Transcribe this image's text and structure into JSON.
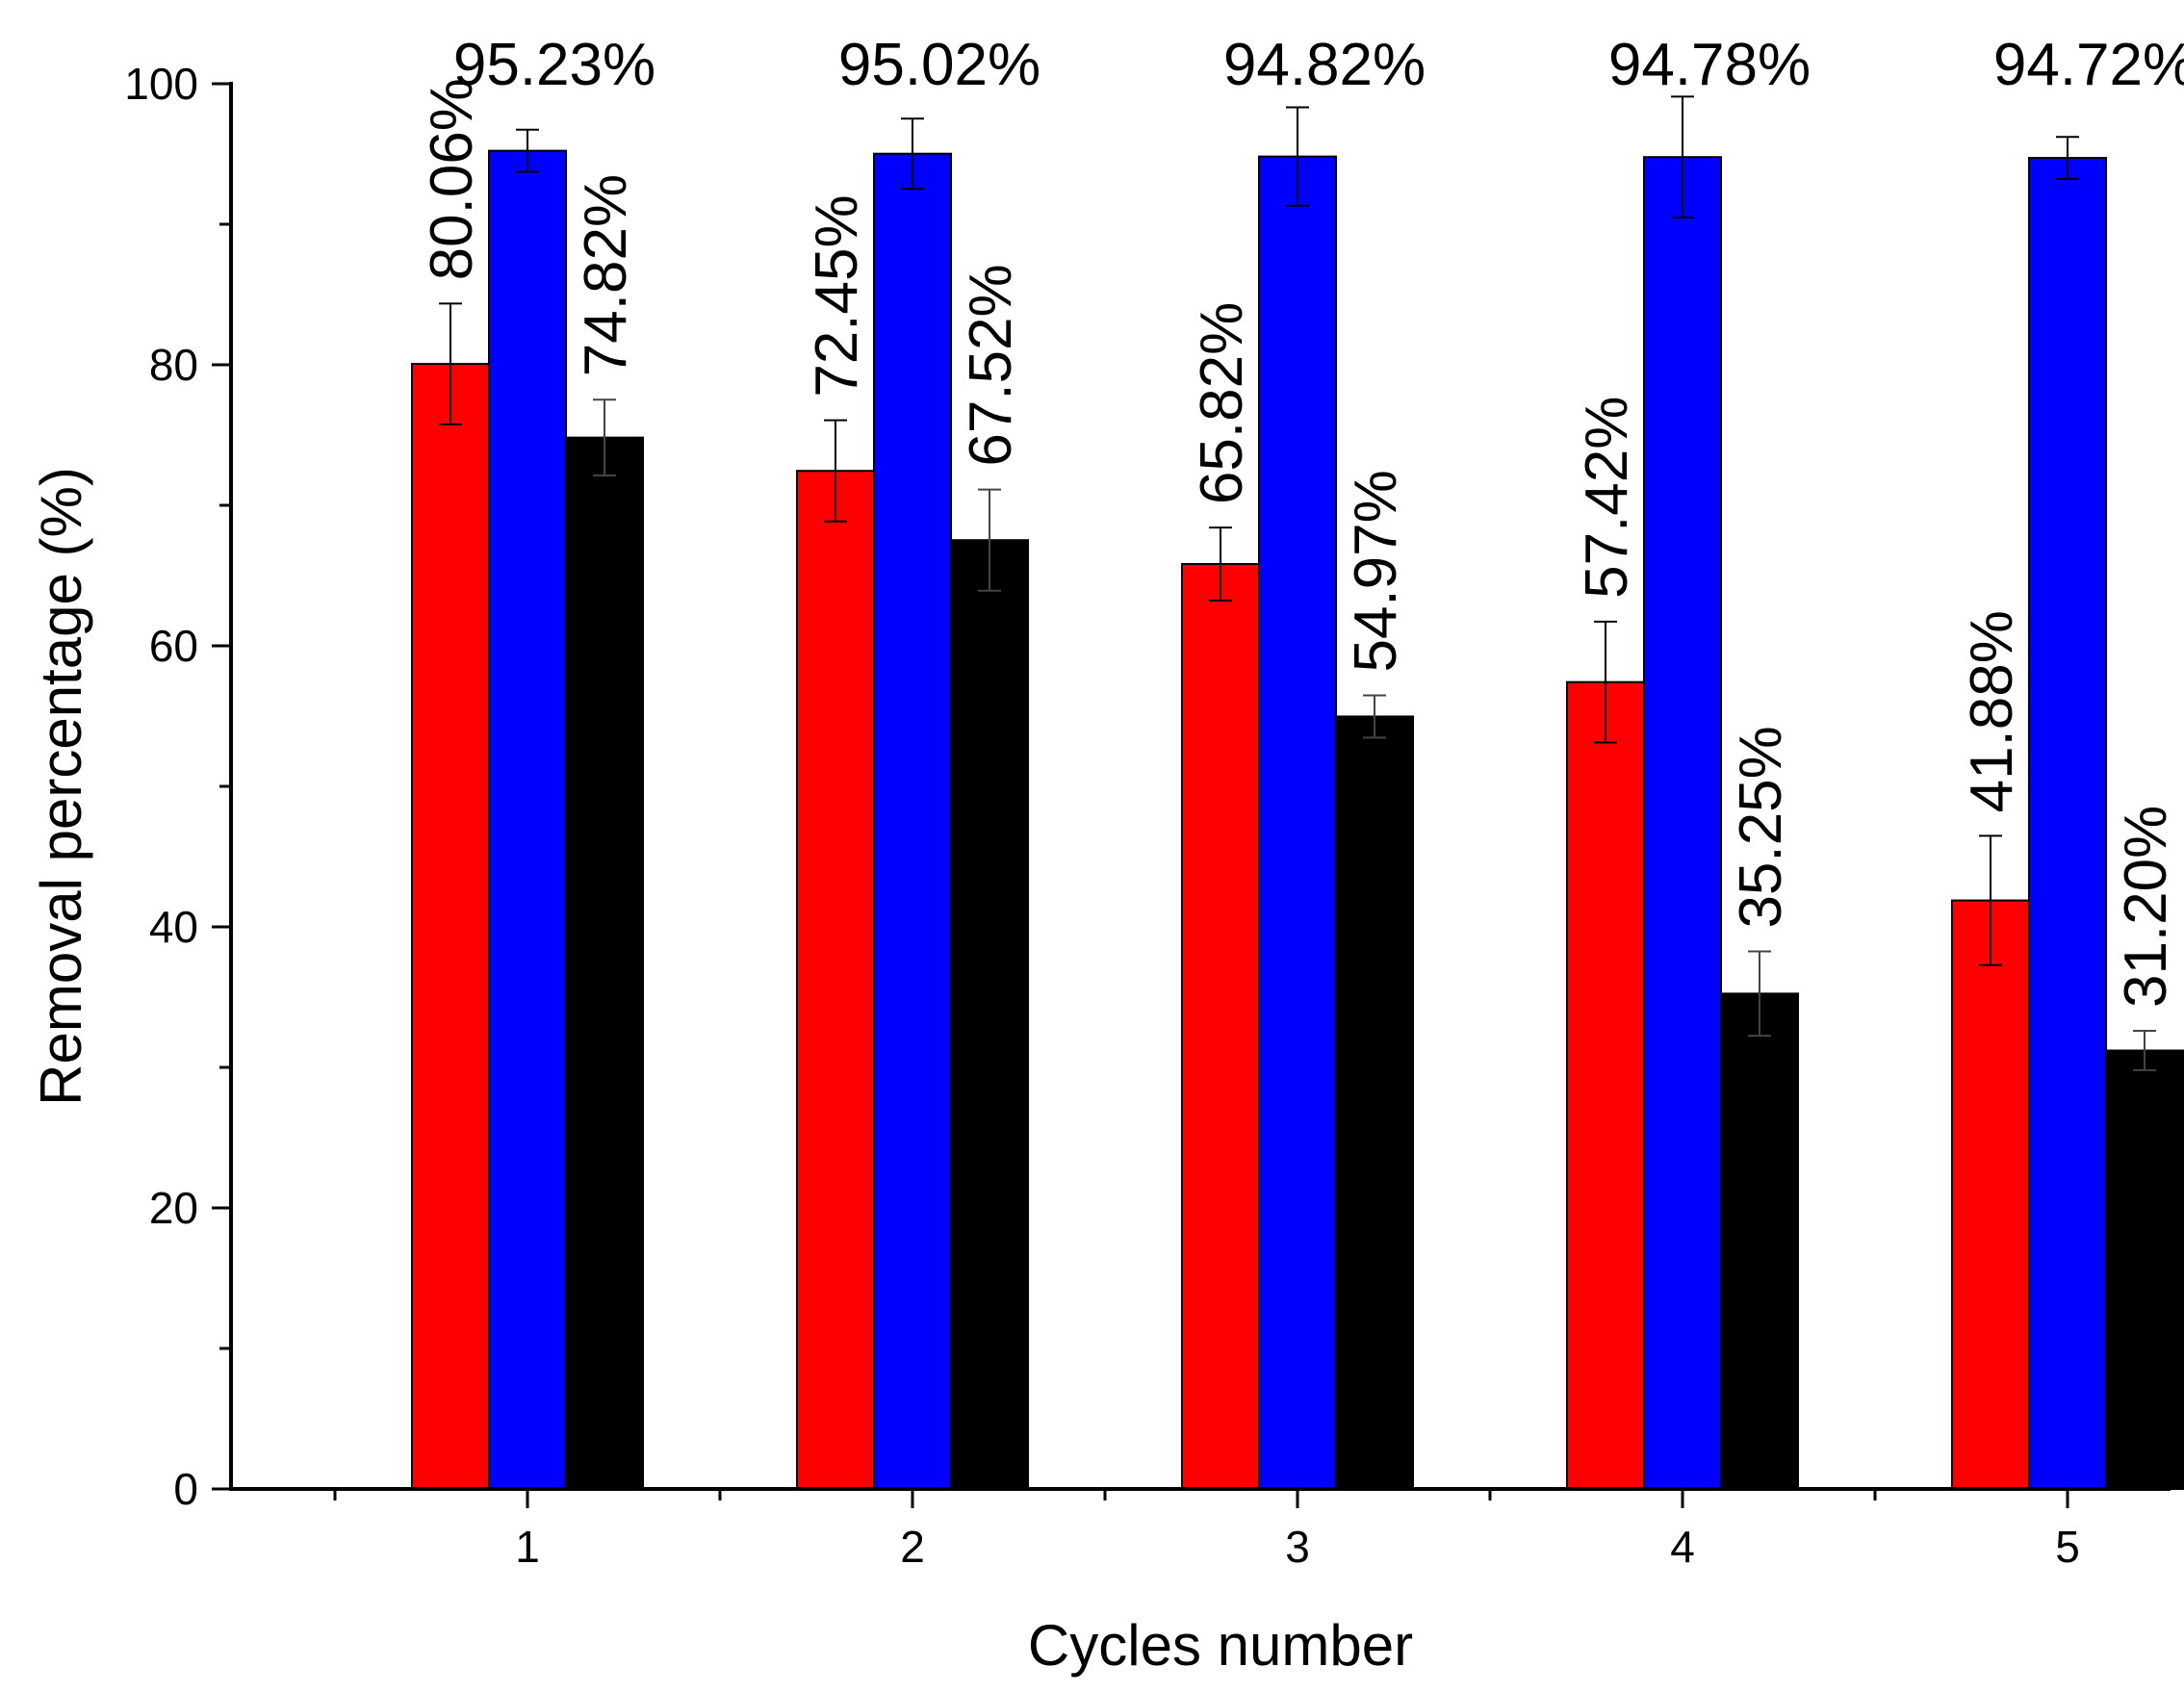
{
  "chart_data": {
    "type": "bar",
    "title": "",
    "xlabel": "Cycles number",
    "ylabel": "Removal percentage (%)",
    "categories": [
      "1",
      "2",
      "3",
      "4",
      "5"
    ],
    "ylim": [
      0,
      100
    ],
    "yticks": [
      "0",
      "20",
      "40",
      "60",
      "80",
      "100"
    ],
    "grid": false,
    "legend": "none",
    "series": [
      {
        "color": "#ff0000",
        "values": [
          80.06,
          72.45,
          65.82,
          57.42,
          41.88
        ],
        "errors": [
          4.3,
          3.6,
          2.6,
          4.3,
          4.6
        ],
        "labels": [
          "80.06%",
          "72.45%",
          "65.82%",
          "57.42%",
          "41.88%"
        ]
      },
      {
        "color": "#0000ff",
        "values": [
          95.23,
          95.02,
          94.82,
          94.78,
          94.72
        ],
        "errors": [
          1.5,
          2.5,
          3.5,
          4.3,
          1.5
        ],
        "labels": [
          "95.23%",
          "95.02%",
          "94.82%",
          "94.78%",
          "94.72%"
        ]
      },
      {
        "color": "#000000",
        "values": [
          74.82,
          67.52,
          54.97,
          35.25,
          31.2
        ],
        "errors": [
          2.7,
          3.6,
          1.5,
          3.0,
          1.4
        ],
        "labels": [
          "74.82%",
          "67.52%",
          "54.97%",
          "35.25%",
          "31.20%"
        ]
      }
    ]
  }
}
